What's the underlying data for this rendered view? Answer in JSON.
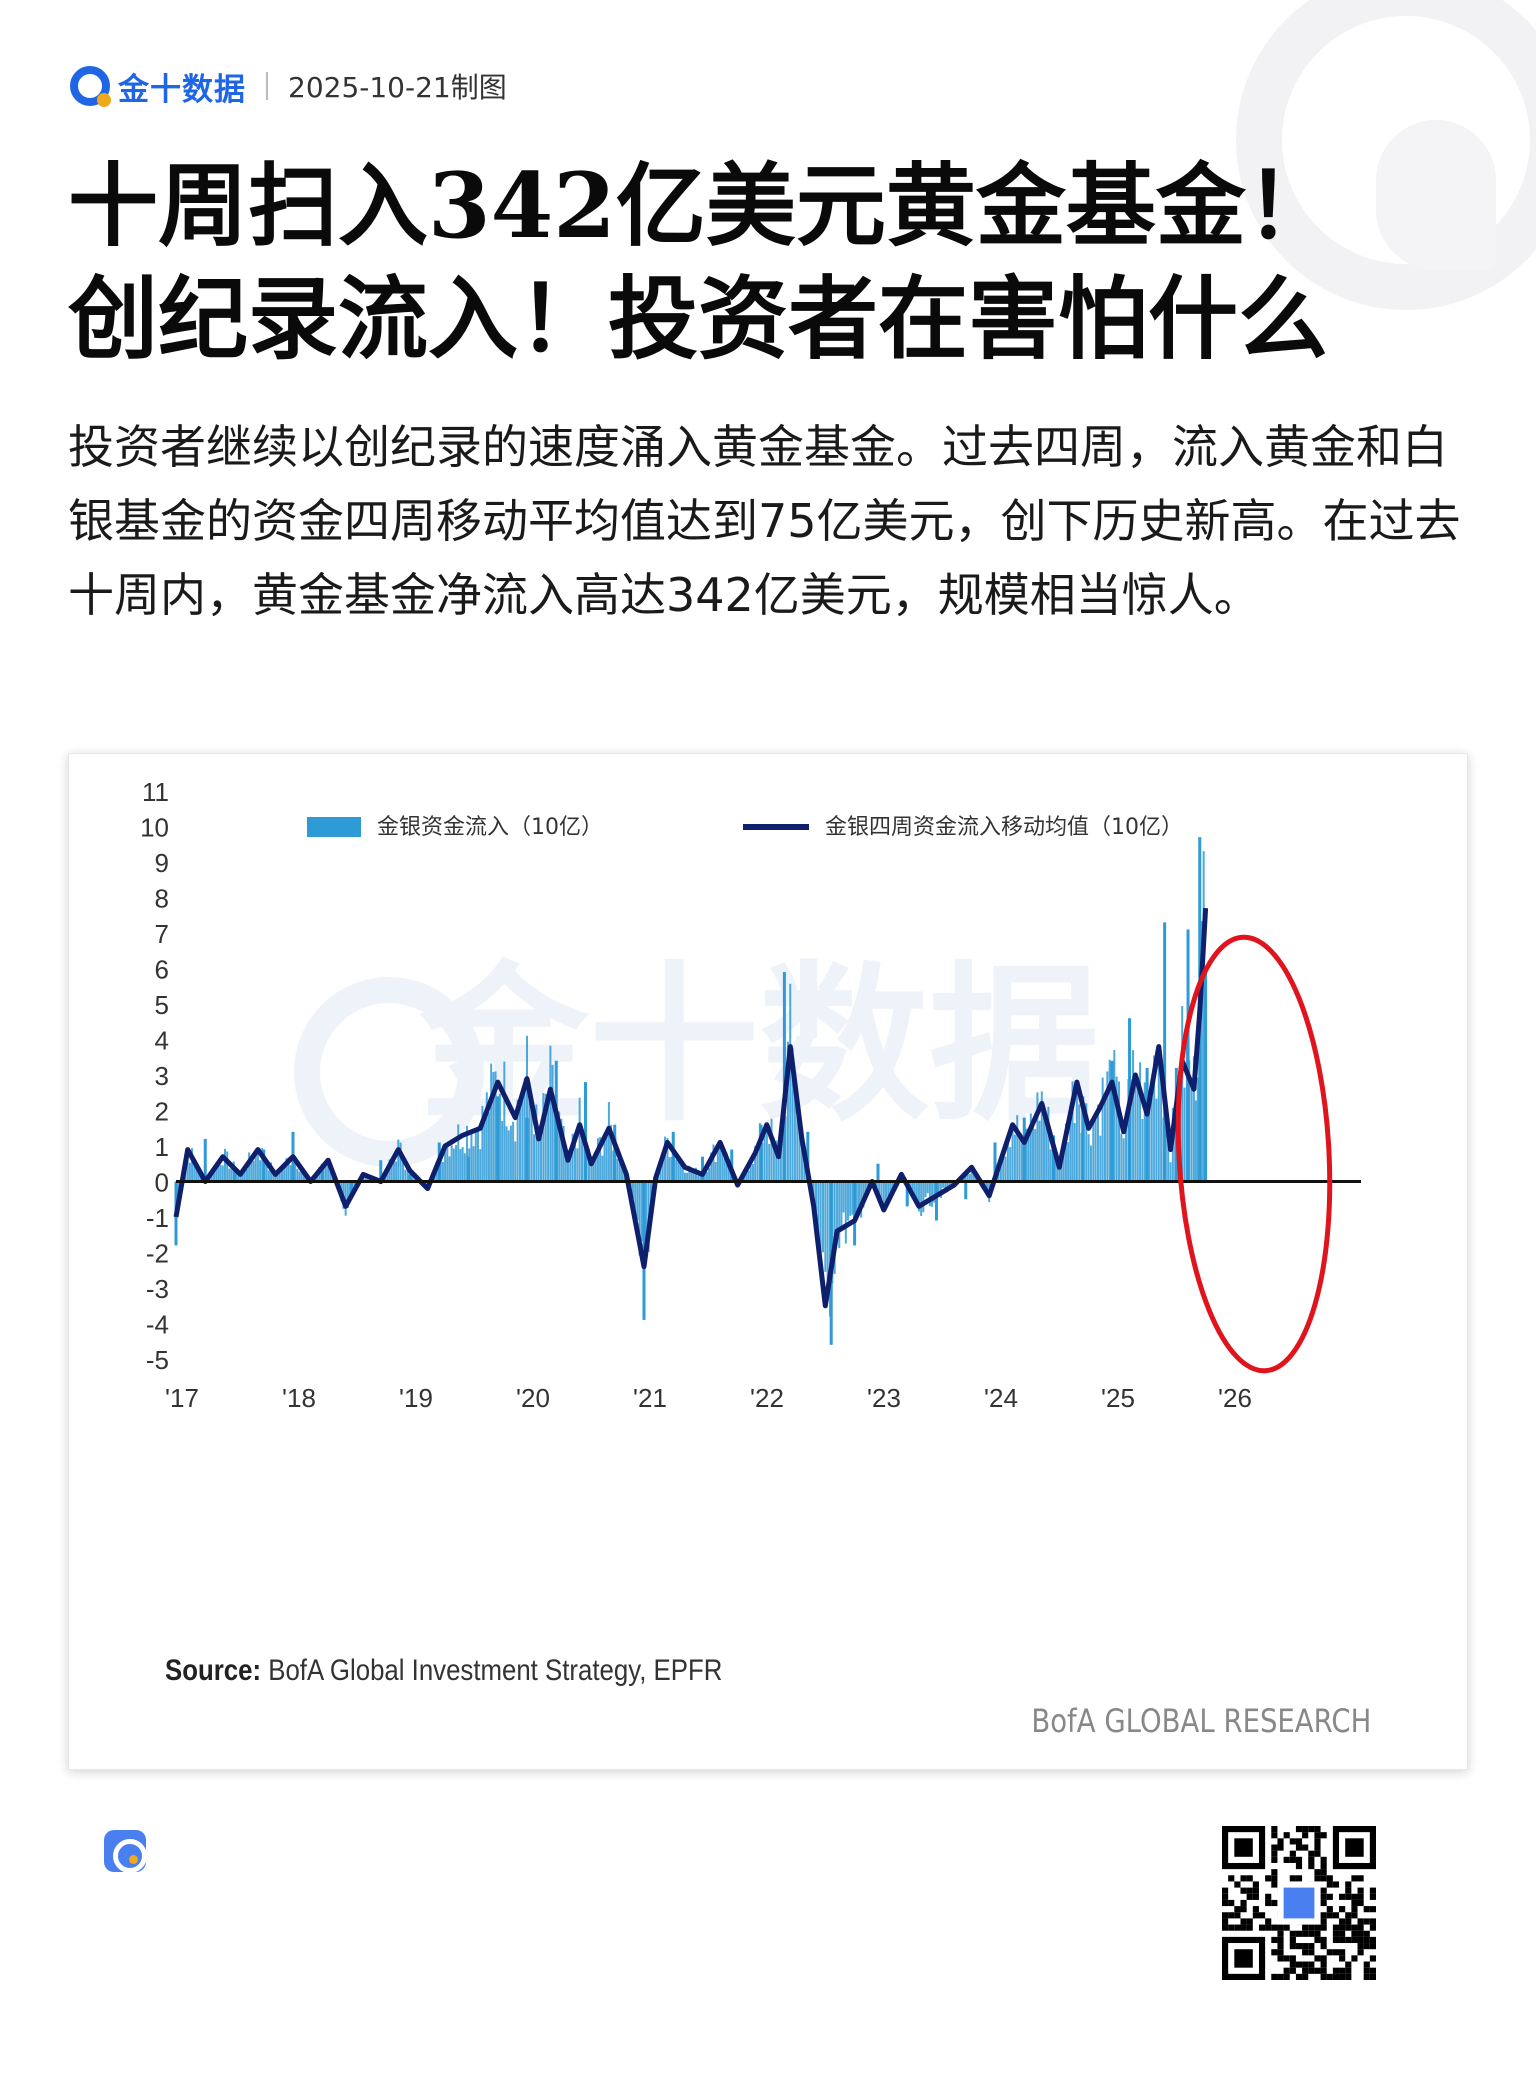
{
  "header": {
    "brand": "金十数据",
    "date": "2025-10-21制图"
  },
  "title": {
    "line1": "十周扫入342亿美元黄金基金！",
    "line2": "创纪录流入！投资者在害怕什么"
  },
  "summary": "投资者继续以创纪录的速度涌入黄金基金。过去四周，流入黄金和白银基金的资金四周移动平均值达到75亿美元，创下历史新高。在过去十周内，黄金基金净流入高达342亿美元，规模相当惊人。",
  "chart": {
    "source_label": "Source:",
    "source_text": "BofA Global Investment Strategy, EPFR",
    "brand": "BofA GLOBAL RESEARCH",
    "watermark": "金十数据"
  },
  "chart_data": {
    "type": "bar",
    "title": "",
    "xlabel": "",
    "ylabel": "",
    "ylim": [
      -5,
      11
    ],
    "y_ticks": [
      "11",
      "10",
      "9",
      "8",
      "7",
      "6",
      "5",
      "4",
      "3",
      "2",
      "1",
      "0",
      "-1",
      "-2",
      "-3",
      "-4",
      "-5"
    ],
    "x_ticks": [
      "'17",
      "'18",
      "'19",
      "'20",
      "'21",
      "'22",
      "'23",
      "'24",
      "'25",
      "'26"
    ],
    "x_range": [
      2017.0,
      2026.0
    ],
    "grid": false,
    "legend": "top",
    "colors": {
      "bars": "#2e9ad6",
      "line": "#0f1f6b",
      "highlight": "#e0141c"
    },
    "annotation": "red ellipse highlighting 2025 surge",
    "series": [
      {
        "name": "金银资金流入（10亿）",
        "kind": "weekly_bars",
        "x": [
          2017.0,
          2017.25,
          2017.5,
          2017.75,
          2018.0,
          2018.25,
          2018.5,
          2018.75,
          2019.0,
          2019.25,
          2019.5,
          2019.75,
          2020.0,
          2020.25,
          2020.5,
          2020.75,
          2021.0,
          2021.25,
          2021.5,
          2021.75,
          2022.0,
          2022.2,
          2022.4,
          2022.6,
          2022.8,
          2023.0,
          2023.25,
          2023.5,
          2023.75,
          2024.0,
          2024.25,
          2024.5,
          2024.75,
          2025.0,
          2025.15,
          2025.3,
          2025.45,
          2025.55,
          2025.65,
          2025.75,
          2025.8
        ],
        "values": [
          -1.8,
          1.2,
          0.4,
          0.9,
          1.4,
          0.5,
          -0.4,
          0.6,
          0.2,
          1.1,
          0.7,
          2.4,
          1.8,
          3.4,
          2.8,
          1.6,
          -3.9,
          1.4,
          0.7,
          0.9,
          1.6,
          5.9,
          1.4,
          -4.6,
          -1.8,
          0.5,
          -0.7,
          -1.1,
          -0.5,
          1.1,
          1.8,
          1.3,
          2.4,
          3.4,
          4.6,
          3.2,
          7.3,
          3.2,
          7.1,
          9.7,
          6.0
        ]
      },
      {
        "name": "金银四周资金流入移动均值（10亿）",
        "kind": "line",
        "x": [
          2017.0,
          2017.1,
          2017.25,
          2017.4,
          2017.55,
          2017.7,
          2017.85,
          2018.0,
          2018.15,
          2018.3,
          2018.45,
          2018.6,
          2018.75,
          2018.9,
          2019.0,
          2019.15,
          2019.3,
          2019.45,
          2019.6,
          2019.75,
          2019.9,
          2020.0,
          2020.1,
          2020.2,
          2020.35,
          2020.45,
          2020.55,
          2020.7,
          2020.85,
          2021.0,
          2021.1,
          2021.2,
          2021.35,
          2021.5,
          2021.65,
          2021.8,
          2021.95,
          2022.05,
          2022.15,
          2022.25,
          2022.35,
          2022.45,
          2022.55,
          2022.65,
          2022.8,
          2022.95,
          2023.05,
          2023.2,
          2023.35,
          2023.5,
          2023.65,
          2023.8,
          2023.95,
          2024.05,
          2024.15,
          2024.25,
          2024.4,
          2024.55,
          2024.7,
          2024.8,
          2024.9,
          2025.0,
          2025.1,
          2025.2,
          2025.3,
          2025.4,
          2025.5,
          2025.6,
          2025.7,
          2025.75,
          2025.8
        ],
        "values": [
          -1.0,
          0.9,
          0.0,
          0.7,
          0.2,
          0.9,
          0.2,
          0.7,
          0.0,
          0.6,
          -0.7,
          0.2,
          0.0,
          0.9,
          0.3,
          -0.2,
          1.0,
          1.3,
          1.5,
          2.8,
          1.8,
          2.9,
          1.2,
          2.6,
          0.6,
          1.6,
          0.5,
          1.5,
          0.2,
          -2.4,
          0.1,
          1.1,
          0.4,
          0.2,
          1.1,
          -0.1,
          0.8,
          1.6,
          0.7,
          3.8,
          1.2,
          -0.7,
          -3.5,
          -1.4,
          -1.1,
          0.0,
          -0.8,
          0.2,
          -0.7,
          -0.4,
          -0.1,
          0.4,
          -0.4,
          0.6,
          1.6,
          1.1,
          2.2,
          0.4,
          2.8,
          1.5,
          2.1,
          2.8,
          1.4,
          3.0,
          1.9,
          3.8,
          0.9,
          3.4,
          2.6,
          4.8,
          7.7
        ]
      }
    ]
  }
}
